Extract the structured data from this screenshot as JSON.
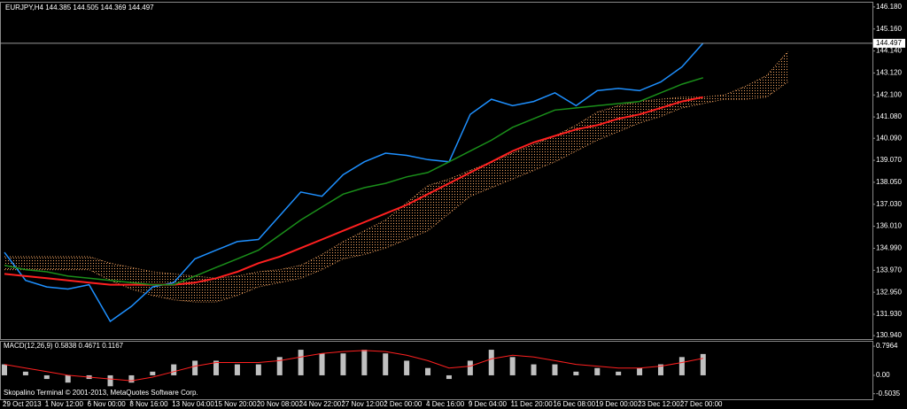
{
  "chart_data": [
    {
      "type": "line",
      "symbol": "EURJPY,H4",
      "ohlc": [
        144.385,
        144.505,
        144.369,
        144.497
      ],
      "last_price": 144.497,
      "categories": [
        "29 Oct 2013",
        null,
        "1 Nov 12:00",
        null,
        "6 Nov 00:00",
        null,
        "8 Nov 16:00",
        null,
        "13 Nov 04:00",
        null,
        "15 Nov 20:00",
        null,
        "20 Nov 08:00",
        null,
        "24 Nov 22:00",
        null,
        "27 Nov 12:00",
        null,
        "2 Dec 00:00",
        null,
        "4 Dec 16:00",
        null,
        "9 Dec 04:00",
        null,
        "11 Dec 20:00",
        null,
        "16 Dec 08:00",
        null,
        "19 Dec 00:00",
        null,
        "23 Dec 12:00",
        null,
        "27 Dec 00:00",
        null,
        null,
        null,
        null,
        null,
        null,
        null,
        null,
        null
      ],
      "series": [
        {
          "color": "#1e90ff",
          "values": [
            134.8,
            133.5,
            133.2,
            133.1,
            133.3,
            131.6,
            132.3,
            133.2,
            133.4,
            134.5,
            134.9,
            135.3,
            135.4,
            136.5,
            137.6,
            137.4,
            138.4,
            139.0,
            139.4,
            139.3,
            139.1,
            139.0,
            141.2,
            141.9,
            141.6,
            141.8,
            142.2,
            141.6,
            142.3,
            142.4,
            142.3,
            142.7,
            143.4,
            144.5,
            null,
            null,
            null,
            null,
            null,
            null,
            null,
            null
          ]
        },
        {
          "color": "#ff2020",
          "values": [
            133.8,
            133.7,
            133.6,
            133.5,
            133.4,
            133.3,
            133.3,
            133.3,
            133.3,
            133.4,
            133.6,
            133.9,
            134.3,
            134.6,
            135.0,
            135.4,
            135.8,
            136.2,
            136.6,
            137.0,
            137.5,
            138.0,
            138.5,
            139.0,
            139.5,
            139.9,
            140.2,
            140.5,
            140.7,
            141.0,
            141.2,
            141.5,
            141.8,
            142.0,
            null,
            null,
            null,
            null,
            null,
            null,
            null,
            null
          ]
        },
        {
          "color": "#1a8f1a",
          "values": [
            134.2,
            134.0,
            133.9,
            133.7,
            133.6,
            133.5,
            133.4,
            133.3,
            133.3,
            133.7,
            134.1,
            134.5,
            134.9,
            135.6,
            136.3,
            136.9,
            137.5,
            137.8,
            138.0,
            138.3,
            138.5,
            139.0,
            139.5,
            140.0,
            140.6,
            141.0,
            141.4,
            141.5,
            141.6,
            141.7,
            141.8,
            142.2,
            142.6,
            142.9,
            null,
            null,
            null,
            null,
            null,
            null,
            null,
            null
          ]
        }
      ],
      "cloud": {
        "color": "#f4a460",
        "upper": [
          134.6,
          134.6,
          134.6,
          134.6,
          134.6,
          134.3,
          134.1,
          133.9,
          133.8,
          133.7,
          133.6,
          133.7,
          133.9,
          134.0,
          134.2,
          134.7,
          135.3,
          135.8,
          136.3,
          137.1,
          137.9,
          138.2,
          138.6,
          139.0,
          139.4,
          139.8,
          140.2,
          140.7,
          141.3,
          141.6,
          141.8,
          141.9,
          142.0,
          142.0,
          142.1,
          142.5,
          143.0,
          144.1,
          null,
          null,
          null,
          null
        ],
        "lower": [
          134.0,
          134.0,
          134.0,
          134.0,
          134.0,
          133.5,
          133.1,
          132.8,
          132.6,
          132.5,
          132.5,
          132.8,
          133.2,
          133.4,
          133.6,
          134.0,
          134.5,
          134.7,
          135.0,
          135.4,
          135.8,
          136.6,
          137.4,
          137.8,
          138.2,
          138.6,
          139.0,
          139.5,
          140.0,
          140.4,
          140.8,
          141.1,
          141.5,
          141.7,
          141.9,
          141.9,
          142.0,
          142.7,
          null,
          null,
          null,
          null
        ]
      },
      "ylim": [
        130.78,
        146.38
      ],
      "yticks": [
        {
          "value": 146.18,
          "label": "146.180"
        },
        {
          "value": 145.16,
          "label": "145.160"
        },
        {
          "value": 144.14,
          "label": "144.140"
        },
        {
          "value": 143.12,
          "label": "143.120"
        },
        {
          "value": 142.1,
          "label": "142.100"
        },
        {
          "value": 141.08,
          "label": "141.080"
        },
        {
          "value": 140.09,
          "label": "140.090"
        },
        {
          "value": 139.07,
          "label": "139.070"
        },
        {
          "value": 138.05,
          "label": "138.050"
        },
        {
          "value": 137.03,
          "label": "137.030"
        },
        {
          "value": 136.01,
          "label": "136.010"
        },
        {
          "value": 134.99,
          "label": "134.990"
        },
        {
          "value": 133.97,
          "label": "133.970"
        },
        {
          "value": 132.95,
          "label": "132.950"
        },
        {
          "value": 131.93,
          "label": "131.930"
        },
        {
          "value": 130.94,
          "label": "130.940"
        }
      ]
    },
    {
      "type": "macd",
      "title": "MACD(12,26,9)",
      "legend_values": [
        0.5838,
        0.4671,
        0.1167
      ],
      "histogram": {
        "color": "#c0c0c0",
        "values": [
          0.3,
          0.1,
          -0.1,
          -0.2,
          -0.1,
          -0.3,
          -0.2,
          0.1,
          0.3,
          0.4,
          0.4,
          0.3,
          0.3,
          0.5,
          0.7,
          0.6,
          0.6,
          0.7,
          0.6,
          0.4,
          0.2,
          -0.1,
          0.4,
          0.7,
          0.5,
          0.3,
          0.3,
          0.1,
          0.2,
          0.1,
          0.2,
          0.3,
          0.5,
          0.5838,
          null,
          null,
          null,
          null,
          null,
          null,
          null,
          null
        ]
      },
      "signal": {
        "color": "#ff2020",
        "values": [
          0.3,
          0.2,
          0.1,
          0,
          -0.05,
          -0.1,
          -0.15,
          -0.05,
          0.1,
          0.25,
          0.35,
          0.35,
          0.35,
          0.4,
          0.5,
          0.6,
          0.65,
          0.68,
          0.65,
          0.55,
          0.4,
          0.2,
          0.25,
          0.45,
          0.55,
          0.5,
          0.4,
          0.3,
          0.25,
          0.2,
          0.2,
          0.25,
          0.35,
          0.4671,
          null,
          null,
          null,
          null,
          null,
          null,
          null,
          null
        ]
      },
      "ylim": [
        -0.68,
        0.92
      ],
      "yticks": [
        0.7964,
        {
          "value": 0,
          "label": "0.00"
        },
        -0.5035
      ]
    }
  ],
  "footer": "Skopalino Terminal © 2001-2013, MetaQuotes Software Corp."
}
